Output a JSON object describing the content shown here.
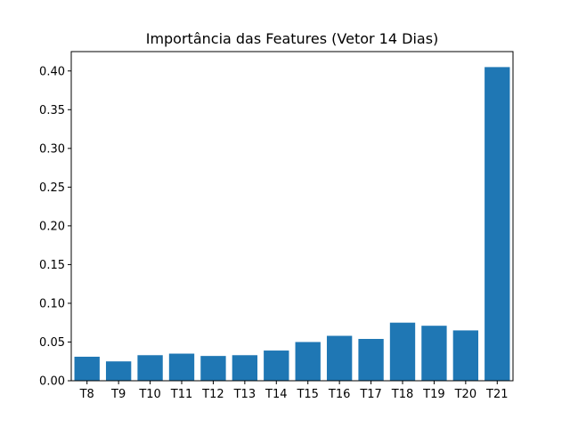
{
  "chart_data": {
    "type": "bar",
    "title": "Importância das Features (Vetor 14 Dias)",
    "xlabel": "",
    "ylabel": "",
    "categories": [
      "T8",
      "T9",
      "T10",
      "T11",
      "T12",
      "T13",
      "T14",
      "T15",
      "T16",
      "T17",
      "T18",
      "T19",
      "T20",
      "T21"
    ],
    "values": [
      0.031,
      0.025,
      0.033,
      0.035,
      0.032,
      0.033,
      0.039,
      0.05,
      0.058,
      0.054,
      0.075,
      0.071,
      0.065,
      0.405
    ],
    "ylim": [
      0,
      0.425
    ],
    "yticks": [
      0.0,
      0.05,
      0.1,
      0.15,
      0.2,
      0.25,
      0.3,
      0.35,
      0.4
    ],
    "ytick_labels": [
      "0.00",
      "0.05",
      "0.10",
      "0.15",
      "0.20",
      "0.25",
      "0.30",
      "0.35",
      "0.40"
    ],
    "bar_color": "#1f77b4",
    "grid": false,
    "legend": "none"
  }
}
